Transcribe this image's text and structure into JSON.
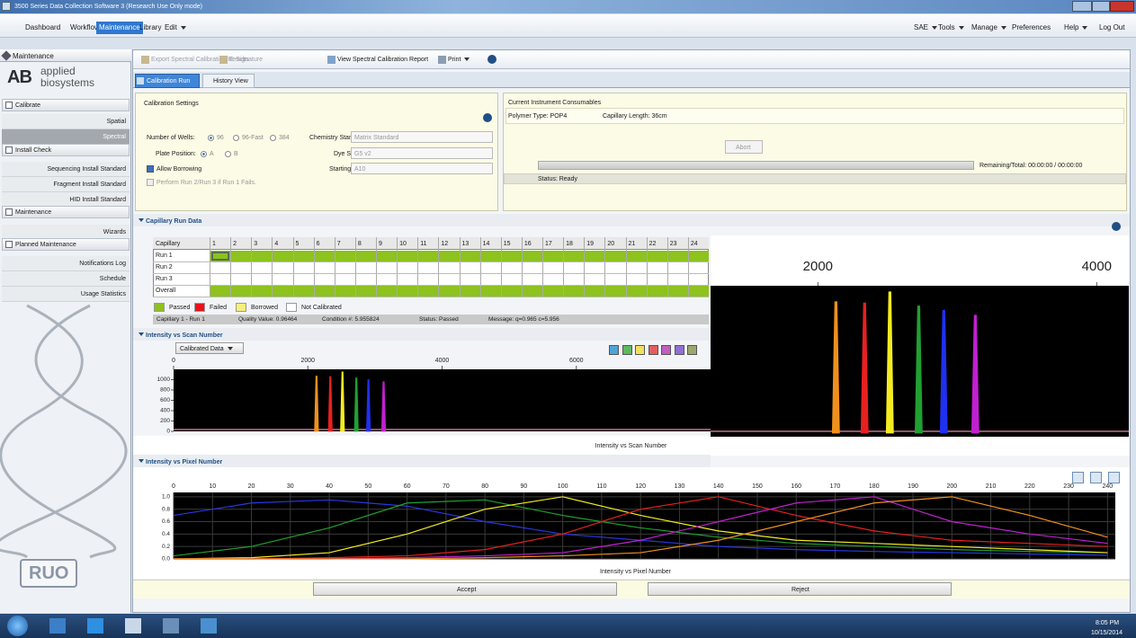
{
  "window": {
    "title": "3500 Series Data Collection Software 3 (Research Use Only mode)"
  },
  "menu": {
    "left": [
      "Dashboard",
      "Workflow",
      "Maintenance",
      "Library",
      "Edit"
    ],
    "right": [
      "SAE",
      "Tools",
      "Manage",
      "Preferences",
      "Help",
      "Log Out"
    ]
  },
  "sidebar": {
    "header": "Maintenance",
    "logo": {
      "mark": "AB",
      "lines": [
        "applied",
        "biosystems"
      ]
    },
    "sections": [
      {
        "title": "Calibrate",
        "items": [
          "Spatial",
          "Spectral"
        ]
      },
      {
        "title": "Install Check",
        "items": [
          "Sequencing Install Standard",
          "Fragment Install Standard",
          "HID Install Standard"
        ]
      },
      {
        "title": "Maintenance",
        "items": [
          "Wizards"
        ]
      },
      {
        "title": "Planned Maintenance",
        "items": [
          "Notifications Log",
          "Schedule",
          "Usage Statistics"
        ]
      }
    ],
    "badge": "RUO"
  },
  "toolbar": [
    "Export Spectral Calibration Results",
    "E-Signature",
    "View Spectral Calibration Report",
    "Print"
  ],
  "tabs": [
    "Calibration Run",
    "History View"
  ],
  "settings": {
    "title": "Calibration Settings",
    "wells_label": "Number of Wells:",
    "wells_options": [
      "96",
      "96-Fast",
      "384"
    ],
    "plate_label": "Plate Position:",
    "plate_options": [
      "A",
      "B"
    ],
    "allow_borrowing": "Allow Borrowing",
    "perform_rerun": "Perform Run 2/Run 3 if Run 1 Fails.",
    "chemistry_label": "Chemistry Standard:",
    "chemistry": "Matrix Standard",
    "dye_set_label": "Dye Set:",
    "dye_set": "G5 v2",
    "starting_well_label": "Starting Well:",
    "starting_well": "A10"
  },
  "consumables": {
    "title": "Current Instrument Consumables",
    "polymer": "Polymer Type: POP4",
    "capillary_length": "Capillary Length: 36cm",
    "abort": "Abort",
    "remaining": "Remaining/Total: 00:00:00 / 00:00:00",
    "status": "Status: Ready"
  },
  "capillary_run_data": {
    "title": "Capillary Run Data",
    "header": "Capillary",
    "columns": [
      1,
      2,
      3,
      4,
      5,
      6,
      7,
      8,
      9,
      10,
      11,
      12,
      13,
      14,
      15,
      16,
      17,
      18,
      19,
      20,
      21,
      22,
      23,
      24
    ],
    "rows": [
      {
        "label": "Run 1",
        "color": "#8dc21f"
      },
      {
        "label": "Run 2"
      },
      {
        "label": "Run 3"
      },
      {
        "label": "Overall",
        "color": "#8dc21f"
      }
    ],
    "legend": [
      {
        "label": "Passed",
        "color": "#8dc21f"
      },
      {
        "label": "Failed",
        "color": "#e8141a"
      },
      {
        "label": "Borrowed",
        "color": "#f6f07a"
      },
      {
        "label": "Not Calibrated",
        "color": "#ffffff"
      }
    ],
    "info": [
      "Capillary 1 - Run 1",
      "Quality Value: 0.96464",
      "Condition #: 5.955824",
      "Status: Passed",
      "Message: q=0.965 c=5.956"
    ]
  },
  "scan_section": {
    "title": "Intensity vs Scan Number",
    "view": "Calibrated Data"
  },
  "pixel_section": {
    "title": "Intensity vs Pixel Number"
  },
  "chart_data": [
    {
      "type": "peaks",
      "title": "Intensity vs Scan Number",
      "background": "#000000",
      "xlim": [
        0,
        8000
      ],
      "xticks": [
        0,
        2000,
        4000,
        6000
      ],
      "ylim": [
        0,
        1200
      ],
      "yticks": [
        0,
        200,
        400,
        600,
        800,
        1000
      ],
      "x": [
        2129,
        2335,
        2516,
        2723,
        2903,
        3129
      ],
      "values": [
        1070,
        1060,
        1150,
        1035,
        1000,
        960
      ],
      "colors": [
        "#f0901c",
        "#e82020",
        "#f4ec20",
        "#20a030",
        "#2030f0",
        "#c020d0"
      ]
    },
    {
      "type": "peaks",
      "background": "#000000",
      "xlim": [
        1230,
        4230
      ],
      "xticks": [
        2000,
        4000
      ],
      "ylim": [
        0,
        1200
      ],
      "x": [
        2129,
        2335,
        2516,
        2723,
        2903,
        3129
      ],
      "values": [
        1070,
        1060,
        1150,
        1035,
        1000,
        960
      ],
      "colors": [
        "#f0901c",
        "#e82020",
        "#f4ec20",
        "#20a030",
        "#2030f0",
        "#c020d0"
      ]
    },
    {
      "type": "line",
      "title": "Intensity vs Pixel Number",
      "background": "#000000",
      "grid": true,
      "xlim": [
        0,
        242
      ],
      "xticks": [
        0,
        10,
        20,
        30,
        40,
        50,
        60,
        70,
        80,
        90,
        100,
        110,
        120,
        130,
        140,
        150,
        160,
        170,
        180,
        190,
        200,
        210,
        220,
        230,
        240
      ],
      "ylim": [
        0,
        1.07
      ],
      "yticks": [
        {
          "value": 0,
          "label": "0.0"
        },
        0.2,
        0.4,
        0.6,
        0.8,
        {
          "value": 1,
          "label": "1.0"
        }
      ],
      "x": [
        0,
        20,
        40,
        60,
        80,
        100,
        120,
        140,
        160,
        180,
        200,
        220,
        240
      ],
      "series": [
        {
          "color": "#2838e0",
          "values": [
            0.7,
            0.9,
            0.95,
            0.85,
            0.6,
            0.4,
            0.3,
            0.2,
            0.15,
            0.12,
            0.1,
            0.08,
            0.06
          ]
        },
        {
          "color": "#20a030",
          "values": [
            0.05,
            0.2,
            0.5,
            0.9,
            0.95,
            0.7,
            0.5,
            0.35,
            0.25,
            0.2,
            0.15,
            0.12,
            0.1
          ]
        },
        {
          "color": "#f4ec20",
          "values": [
            0,
            0.02,
            0.1,
            0.4,
            0.8,
            1.0,
            0.7,
            0.45,
            0.3,
            0.25,
            0.2,
            0.15,
            0.1
          ]
        },
        {
          "color": "#e82020",
          "values": [
            0,
            0,
            0.02,
            0.05,
            0.15,
            0.4,
            0.8,
            1.0,
            0.7,
            0.45,
            0.3,
            0.25,
            0.2
          ]
        },
        {
          "color": "#c020d0",
          "values": [
            0,
            0,
            0,
            0.02,
            0.05,
            0.1,
            0.3,
            0.6,
            0.9,
            1.0,
            0.6,
            0.4,
            0.25
          ]
        },
        {
          "color": "#f0901c",
          "values": [
            0,
            0,
            0,
            0,
            0.02,
            0.05,
            0.1,
            0.3,
            0.6,
            0.9,
            1.0,
            0.7,
            0.35
          ]
        }
      ]
    }
  ],
  "buttons": [
    "Accept",
    "Reject"
  ],
  "taskbar": {
    "time": "8:05 PM",
    "date": "10/15/2014"
  }
}
